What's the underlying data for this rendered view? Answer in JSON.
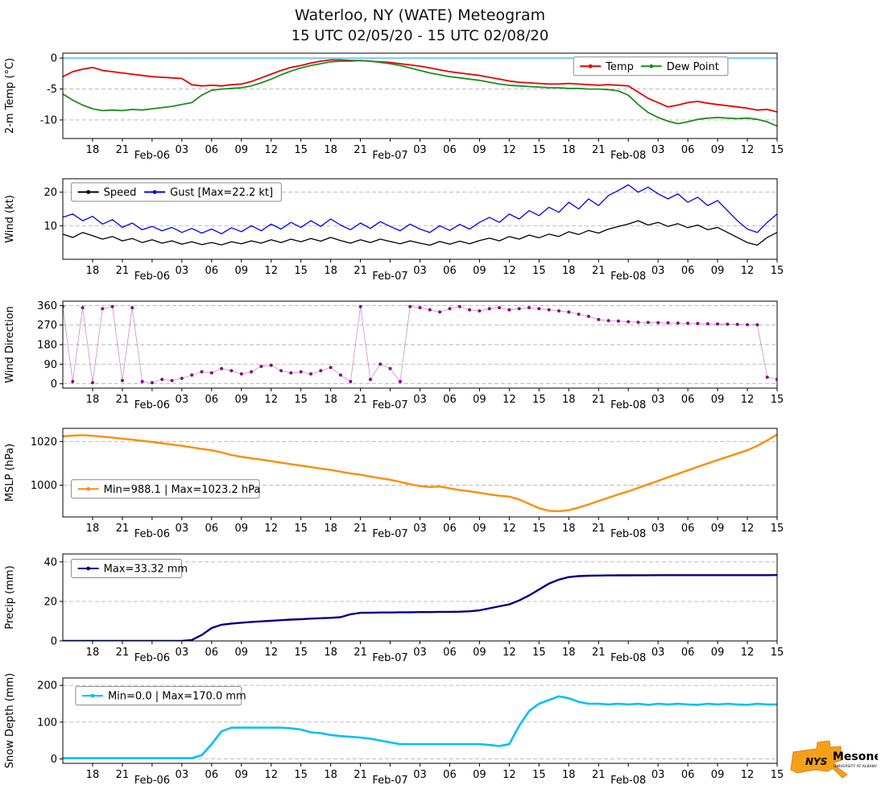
{
  "title": {
    "line1": "Waterloo, NY (WATE) Meteogram",
    "line2": "15 UTC 02/05/20 - 15 UTC 02/08/20"
  },
  "logo": {
    "nys": "NYS",
    "mesonet": "Mesonet",
    "tagline": "UNIVERSITY AT ALBANY"
  },
  "chart_data": {
    "type": "line",
    "title": "Waterloo, NY (WATE) Meteogram",
    "subtitle": "15 UTC 02/05/20 - 15 UTC 02/08/20",
    "x_axis": {
      "start": "15 UTC 02/05/20",
      "end": "15 UTC 02/08/20",
      "total_hours": 72,
      "ticks": [
        {
          "t": 3,
          "label": "18"
        },
        {
          "t": 6,
          "label": "21"
        },
        {
          "t": 9,
          "label": "Feb-06",
          "date": true
        },
        {
          "t": 12,
          "label": "03"
        },
        {
          "t": 15,
          "label": "06"
        },
        {
          "t": 18,
          "label": "09"
        },
        {
          "t": 21,
          "label": "12"
        },
        {
          "t": 24,
          "label": "15"
        },
        {
          "t": 27,
          "label": "18"
        },
        {
          "t": 30,
          "label": "21"
        },
        {
          "t": 33,
          "label": "Feb-07",
          "date": true
        },
        {
          "t": 36,
          "label": "03"
        },
        {
          "t": 39,
          "label": "06"
        },
        {
          "t": 42,
          "label": "09"
        },
        {
          "t": 45,
          "label": "12"
        },
        {
          "t": 48,
          "label": "15"
        },
        {
          "t": 51,
          "label": "18"
        },
        {
          "t": 54,
          "label": "21"
        },
        {
          "t": 57,
          "label": "Feb-08",
          "date": true
        },
        {
          "t": 60,
          "label": "03"
        },
        {
          "t": 63,
          "label": "06"
        },
        {
          "t": 66,
          "label": "09"
        },
        {
          "t": 69,
          "label": "12"
        },
        {
          "t": 72,
          "label": "15"
        }
      ]
    },
    "panels": [
      {
        "id": "temp",
        "type": "line",
        "ylabel": "2-m Temp (°C)",
        "ylim": [
          -13,
          0.8
        ],
        "yticks": [
          0,
          -5,
          -10
        ],
        "hline": {
          "y": 0,
          "color": "#63c5ea"
        },
        "legend": {
          "x": 0.715,
          "y": 0.045,
          "labels": [
            "Temp",
            "Dew Point"
          ]
        },
        "series": [
          {
            "name": "Temp",
            "color": "#e50000",
            "width": 1.8,
            "values": [
              -3.0,
              -2.2,
              -1.8,
              -1.5,
              -2.0,
              -2.2,
              -2.4,
              -2.6,
              -2.8,
              -3.0,
              -3.1,
              -3.2,
              -3.3,
              -4.3,
              -4.5,
              -4.4,
              -4.5,
              -4.3,
              -4.2,
              -3.8,
              -3.2,
              -2.6,
              -2.0,
              -1.5,
              -1.2,
              -0.8,
              -0.5,
              -0.3,
              -0.3,
              -0.4,
              -0.4,
              -0.5,
              -0.6,
              -0.7,
              -0.9,
              -1.1,
              -1.3,
              -1.6,
              -1.9,
              -2.2,
              -2.4,
              -2.6,
              -2.8,
              -3.1,
              -3.4,
              -3.7,
              -3.9,
              -4.0,
              -4.1,
              -4.2,
              -4.2,
              -4.1,
              -4.2,
              -4.3,
              -4.4,
              -4.3,
              -4.4,
              -4.5,
              -5.5,
              -6.5,
              -7.2,
              -7.9,
              -7.6,
              -7.2,
              -7.0,
              -7.3,
              -7.5,
              -7.7,
              -7.9,
              -8.1,
              -8.4,
              -8.3,
              -8.7
            ]
          },
          {
            "name": "Dew Point",
            "color": "#1e8c1e",
            "width": 1.8,
            "values": [
              -5.8,
              -6.8,
              -7.6,
              -8.2,
              -8.5,
              -8.4,
              -8.5,
              -8.3,
              -8.4,
              -8.2,
              -8.0,
              -7.8,
              -7.5,
              -7.2,
              -6.0,
              -5.2,
              -5.0,
              -4.9,
              -4.8,
              -4.5,
              -4.0,
              -3.4,
              -2.7,
              -2.1,
              -1.6,
              -1.2,
              -0.9,
              -0.6,
              -0.5,
              -0.5,
              -0.4,
              -0.5,
              -0.7,
              -0.9,
              -1.2,
              -1.6,
              -2.0,
              -2.4,
              -2.7,
              -3.0,
              -3.2,
              -3.4,
              -3.6,
              -3.9,
              -4.2,
              -4.4,
              -4.5,
              -4.6,
              -4.7,
              -4.8,
              -4.8,
              -4.9,
              -4.9,
              -5.0,
              -5.0,
              -5.1,
              -5.3,
              -6.0,
              -7.5,
              -8.8,
              -9.6,
              -10.2,
              -10.6,
              -10.3,
              -9.9,
              -9.7,
              -9.6,
              -9.7,
              -9.8,
              -9.7,
              -9.9,
              -10.3,
              -11.0
            ]
          }
        ]
      },
      {
        "id": "wind",
        "type": "line",
        "ylabel": "Wind (kt)",
        "ylim": [
          0,
          24
        ],
        "yticks": [
          10,
          20
        ],
        "legend": {
          "x": 0.012,
          "y": 0.05,
          "labels": [
            "Speed",
            "Gust [Max=22.2 kt]"
          ]
        },
        "series": [
          {
            "name": "Speed",
            "color": "#000000",
            "width": 1.3,
            "values": [
              7.5,
              6.5,
              8.0,
              7.0,
              6.0,
              6.8,
              5.5,
              6.2,
              5.0,
              5.8,
              4.8,
              5.5,
              4.5,
              5.2,
              4.4,
              5.0,
              4.3,
              5.2,
              4.6,
              5.5,
              4.8,
              5.8,
              5.0,
              6.0,
              5.2,
              6.2,
              5.4,
              6.5,
              5.6,
              4.8,
              5.8,
              5.0,
              6.0,
              5.3,
              4.6,
              5.5,
              4.8,
              4.2,
              5.3,
              4.5,
              5.4,
              4.6,
              5.6,
              6.3,
              5.5,
              6.8,
              6.0,
              7.2,
              6.4,
              7.5,
              6.8,
              8.2,
              7.4,
              8.6,
              7.8,
              9.0,
              9.8,
              10.5,
              11.5,
              10.2,
              11.0,
              9.8,
              10.6,
              9.4,
              10.2,
              8.8,
              9.5,
              8.0,
              6.5,
              5.0,
              4.2,
              6.5,
              8.0
            ]
          },
          {
            "name": "Gust",
            "color": "#0000ee",
            "width": 1.3,
            "values": [
              12.5,
              13.5,
              11.5,
              12.8,
              10.5,
              11.8,
              9.5,
              10.8,
              8.8,
              9.8,
              8.5,
              9.5,
              8.0,
              9.2,
              7.8,
              9.0,
              7.6,
              9.4,
              8.2,
              10.0,
              8.5,
              10.5,
              9.0,
              11.0,
              9.5,
              11.5,
              9.8,
              12.0,
              10.2,
              8.8,
              10.8,
              9.2,
              11.2,
              9.8,
              8.5,
              10.5,
              9.0,
              8.0,
              10.0,
              8.6,
              10.4,
              9.0,
              11.0,
              12.5,
              11.0,
              13.5,
              12.0,
              14.5,
              13.0,
              15.5,
              14.0,
              17.0,
              15.0,
              18.0,
              16.0,
              19.0,
              20.5,
              22.2,
              20.0,
              21.5,
              19.5,
              18.0,
              19.5,
              17.0,
              18.5,
              16.0,
              17.5,
              14.5,
              11.5,
              9.0,
              8.0,
              11.0,
              13.5
            ]
          }
        ]
      },
      {
        "id": "wind-direction",
        "type": "scatter",
        "ylabel": "Wind Direction",
        "ylim": [
          -20,
          380
        ],
        "yticks": [
          0,
          90,
          180,
          270,
          360
        ],
        "series": [
          {
            "name": "Direction",
            "color": "#8b008b",
            "values": [
              355,
              10,
              350,
              5,
              345,
              355,
              15,
              350,
              10,
              5,
              20,
              15,
              25,
              40,
              55,
              50,
              70,
              60,
              45,
              55,
              80,
              85,
              60,
              50,
              55,
              45,
              60,
              75,
              40,
              10,
              355,
              20,
              90,
              70,
              10,
              355,
              350,
              340,
              330,
              345,
              355,
              340,
              335,
              345,
              350,
              340,
              345,
              350,
              345,
              340,
              335,
              330,
              320,
              310,
              295,
              290,
              288,
              285,
              283,
              282,
              281,
              280,
              279,
              278,
              277,
              276,
              275,
              274,
              273,
              272,
              271,
              30,
              20
            ]
          }
        ]
      },
      {
        "id": "mslp",
        "type": "line",
        "ylabel": "MSLP (hPa)",
        "ylim": [
          985.5,
          1026
        ],
        "yticks": [
          1000,
          1020
        ],
        "legend": {
          "x": 0.012,
          "y": 0.58,
          "labels": [
            "Min=988.1 | Max=1023.2 hPa"
          ]
        },
        "series": [
          {
            "name": "MSLP",
            "color": "#ff8c00",
            "width": 2.4,
            "values": [
              1022.4,
              1022.7,
              1022.9,
              1022.6,
              1022.2,
              1021.8,
              1021.3,
              1020.8,
              1020.3,
              1019.8,
              1019.2,
              1018.6,
              1018.0,
              1017.3,
              1016.6,
              1016.0,
              1015.0,
              1013.8,
              1013.0,
              1012.3,
              1011.7,
              1011.0,
              1010.3,
              1009.6,
              1009.0,
              1008.3,
              1007.6,
              1007.0,
              1006.2,
              1005.4,
              1004.8,
              1004.0,
              1003.2,
              1002.5,
              1001.5,
              1000.5,
              999.6,
              999.2,
              999.4,
              998.6,
              997.8,
              997.2,
              996.6,
              995.8,
              995.2,
              994.8,
              993.5,
              991.5,
              989.5,
              988.3,
              988.1,
              988.6,
              989.8,
              991.2,
              992.8,
              994.3,
              995.8,
              997.2,
              998.8,
              1000.4,
              1002.0,
              1003.6,
              1005.2,
              1006.8,
              1008.4,
              1010.0,
              1011.5,
              1013.0,
              1014.5,
              1016.0,
              1018.0,
              1020.5,
              1023.2
            ]
          }
        ]
      },
      {
        "id": "precip",
        "type": "line",
        "ylabel": "Precip (mm)",
        "ylim": [
          0,
          44
        ],
        "yticks": [
          0,
          20,
          40
        ],
        "legend": {
          "x": 0.012,
          "y": 0.06,
          "labels": [
            "Max=33.32 mm"
          ]
        },
        "series": [
          {
            "name": "Precip",
            "color": "#000080",
            "width": 2.4,
            "values": [
              0,
              0,
              0,
              0,
              0,
              0,
              0,
              0,
              0,
              0,
              0,
              0,
              0,
              0.5,
              3.0,
              6.5,
              8.2,
              8.8,
              9.2,
              9.6,
              9.9,
              10.2,
              10.5,
              10.8,
              11.0,
              11.3,
              11.5,
              11.7,
              12.0,
              13.5,
              14.2,
              14.3,
              14.4,
              14.4,
              14.5,
              14.5,
              14.6,
              14.6,
              14.7,
              14.7,
              14.8,
              15.0,
              15.5,
              16.5,
              17.5,
              18.5,
              20.5,
              23.0,
              26.0,
              29.0,
              31.0,
              32.3,
              32.8,
              33.0,
              33.1,
              33.15,
              33.2,
              33.2,
              33.25,
              33.25,
              33.3,
              33.3,
              33.3,
              33.3,
              33.3,
              33.3,
              33.3,
              33.3,
              33.3,
              33.3,
              33.3,
              33.3,
              33.32
            ]
          }
        ]
      },
      {
        "id": "snow-depth",
        "type": "line",
        "ylabel": "Snow Depth (mm)",
        "ylim": [
          -12,
          220
        ],
        "yticks": [
          0,
          100,
          200
        ],
        "legend": {
          "x": 0.018,
          "y": 0.1,
          "labels": [
            "Min=0.0 | Max=170.0 mm"
          ]
        },
        "series": [
          {
            "name": "Snow Depth",
            "color": "#00bfff",
            "width": 2.6,
            "values": [
              2,
              2,
              2,
              2,
              2,
              2,
              2,
              2,
              2,
              2,
              2,
              2,
              2,
              2,
              10,
              40,
              75,
              85,
              85,
              85,
              85,
              85,
              85,
              83,
              80,
              72,
              70,
              65,
              62,
              60,
              58,
              55,
              50,
              45,
              40,
              40,
              40,
              40,
              40,
              40,
              40,
              40,
              40,
              38,
              35,
              40,
              90,
              130,
              150,
              160,
              170,
              165,
              155,
              150,
              150,
              148,
              150,
              148,
              150,
              147,
              150,
              148,
              150,
              148,
              147,
              150,
              148,
              150,
              148,
              147,
              150,
              148,
              148
            ]
          }
        ]
      }
    ]
  }
}
